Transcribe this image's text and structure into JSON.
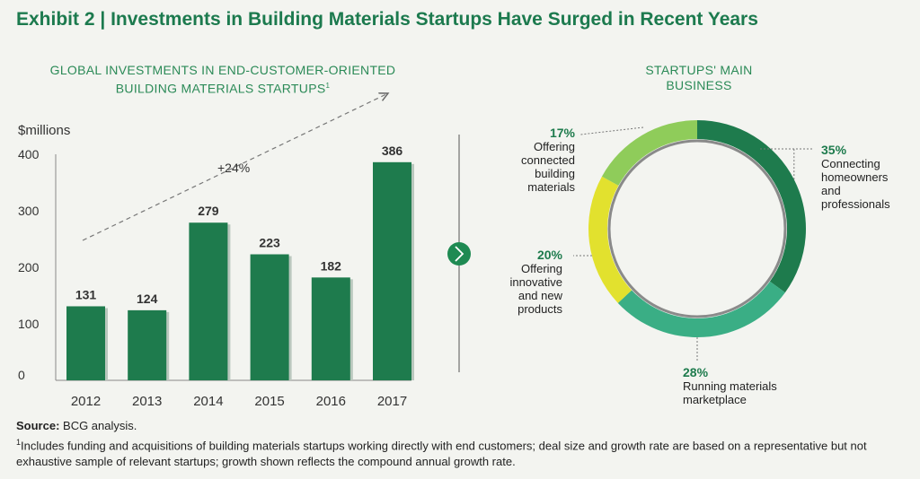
{
  "title_prefix": "Exhibit 2",
  "title_sep": " | ",
  "title_text": "Investments in Building Materials Startups Have Surged in Recent Years",
  "bar_panel": {
    "subtitle_line1": "GLOBAL INVESTMENTS IN END-CUSTOMER-ORIENTED",
    "subtitle_line2": "BUILDING MATERIALS STARTUPS",
    "subtitle_sup": "1",
    "unit_label": "$millions",
    "growth_label": "+24%"
  },
  "donut_panel": {
    "subtitle_line1": "STARTUPS' MAIN",
    "subtitle_line2": "BUSINESS"
  },
  "footer": {
    "source_label": "Source:",
    "source_text": " BCG analysis.",
    "footnote_sup": "1",
    "footnote_text": "Includes funding and acquisitions of building materials startups working directly with end customers; deal size and growth rate are based on a representative but not exhaustive sample of relevant startups; growth shown reflects the compound annual growth rate."
  },
  "colors": {
    "bar": "#1e7b4d",
    "bar_shadow": "#b9c7bd",
    "title": "#1c7a4e",
    "arrow_button": "#1e8a52"
  },
  "chart_data": [
    {
      "type": "bar",
      "title": "GLOBAL INVESTMENTS IN END-CUSTOMER-ORIENTED BUILDING MATERIALS STARTUPS",
      "ylabel": "$millions",
      "xlabel": "",
      "categories": [
        "2012",
        "2013",
        "2014",
        "2015",
        "2016",
        "2017"
      ],
      "values": [
        131,
        124,
        279,
        223,
        182,
        386
      ],
      "data_labels": [
        "131",
        "124",
        "279",
        "223",
        "182",
        "386"
      ],
      "ylim": [
        0,
        400
      ],
      "yticks": [
        0,
        100,
        200,
        300,
        400
      ],
      "annotation": "+24%"
    },
    {
      "type": "pie",
      "title": "STARTUPS' MAIN BUSINESS",
      "slices": [
        {
          "label": "Connecting homeowners and professionals",
          "label_lines": [
            "Connecting",
            "homeowners",
            "and",
            "professionals"
          ],
          "value": 35,
          "pct_label": "35%",
          "color": "#1e7b4d"
        },
        {
          "label": "Running materials marketplace",
          "label_lines": [
            "Running materials",
            "marketplace"
          ],
          "value": 28,
          "pct_label": "28%",
          "color": "#3aae85"
        },
        {
          "label": "Offering innovative and new products",
          "label_lines": [
            "Offering",
            "innovative",
            "and new",
            "products"
          ],
          "value": 20,
          "pct_label": "20%",
          "color": "#e2e12e"
        },
        {
          "label": "Offering connected building materials",
          "label_lines": [
            "Offering",
            "connected",
            "building",
            "materials"
          ],
          "value": 17,
          "pct_label": "17%",
          "color": "#8fcc5a"
        }
      ]
    }
  ]
}
